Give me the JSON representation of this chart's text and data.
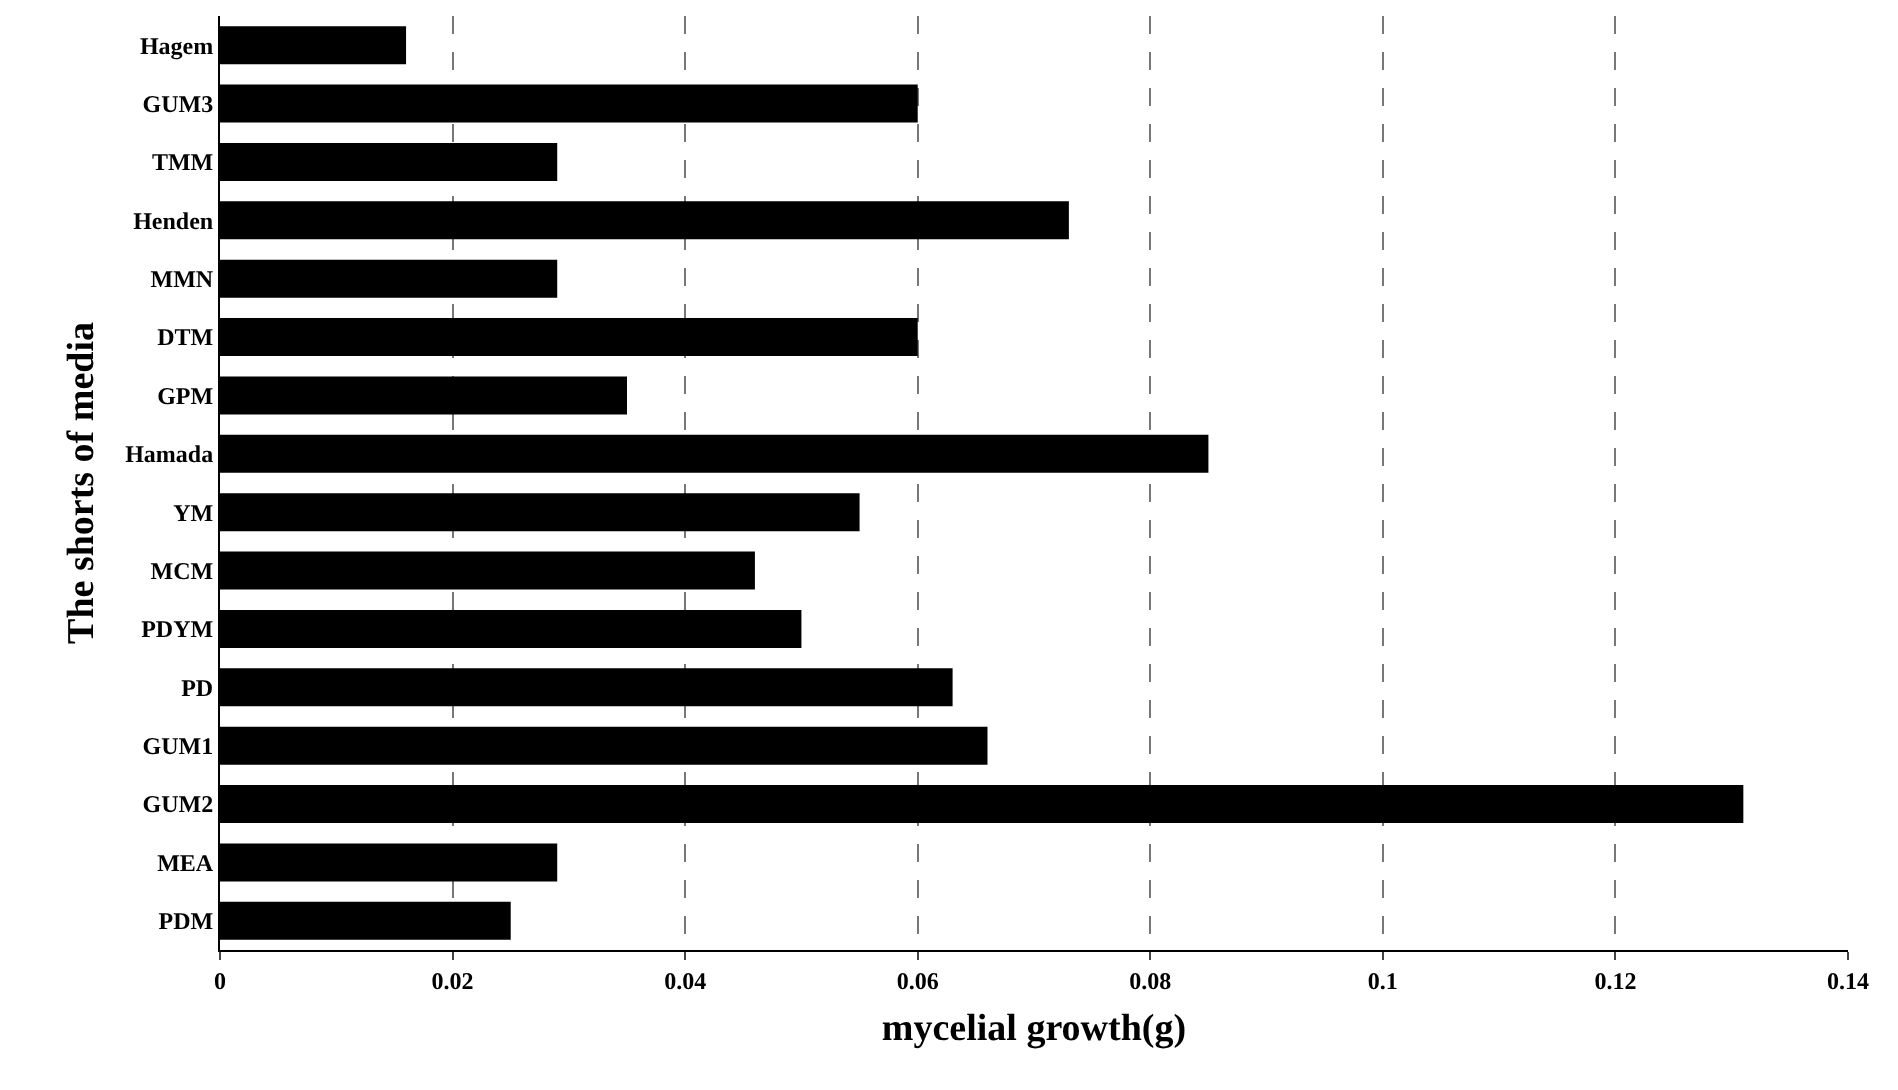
{
  "chart_data": {
    "type": "bar",
    "orientation": "horizontal",
    "xlabel": "mycelial growth(g)",
    "ylabel": "The shorts of media",
    "categories": [
      "Hagem",
      "GUM3",
      "TMM",
      "Henden",
      "MMN",
      "DTM",
      "GPM",
      "Hamada",
      "YM",
      "MCM",
      "PDYM",
      "PD",
      "GUM1",
      "GUM2",
      "MEA",
      "PDM"
    ],
    "values": [
      0.016,
      0.06,
      0.029,
      0.073,
      0.029,
      0.06,
      0.035,
      0.085,
      0.055,
      0.046,
      0.05,
      0.063,
      0.066,
      0.131,
      0.029,
      0.025
    ],
    "color": "#000000",
    "xlim": [
      0,
      0.14
    ],
    "xticks": [
      0,
      0.02,
      0.04,
      0.06,
      0.08,
      0.1,
      0.12,
      0.14
    ],
    "grid": "x"
  }
}
